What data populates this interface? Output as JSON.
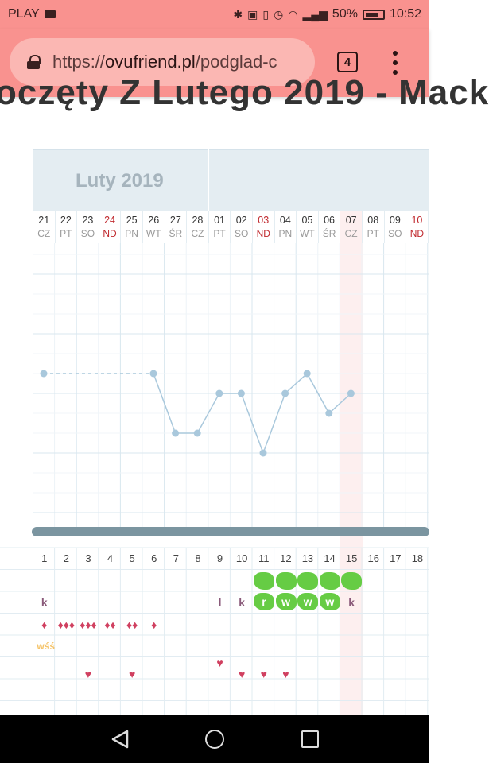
{
  "status_bar": {
    "carrier": "PLAY",
    "battery": "50%",
    "time": "10:52",
    "icons": [
      "mail-icon",
      "bluetooth-icon",
      "nfc-icon",
      "vibrate-icon",
      "alarm-icon",
      "wifi-icon",
      "signal-icon",
      "battery-icon"
    ]
  },
  "browser": {
    "url_scheme": "https://",
    "url_host": "ovufriend.pl",
    "url_path": "/podglad-c",
    "tab_count": "4"
  },
  "page": {
    "heading_partial": "oczęty Z Lutego 2019 - Mack"
  },
  "calendar": {
    "month_label": "Luty 2019",
    "days": [
      {
        "num": "21",
        "wd": "CZ",
        "sunday": false
      },
      {
        "num": "22",
        "wd": "PT",
        "sunday": false
      },
      {
        "num": "23",
        "wd": "SO",
        "sunday": false
      },
      {
        "num": "24",
        "wd": "ND",
        "sunday": true
      },
      {
        "num": "25",
        "wd": "PN",
        "sunday": false
      },
      {
        "num": "26",
        "wd": "WT",
        "sunday": false
      },
      {
        "num": "27",
        "wd": "ŚR",
        "sunday": false
      },
      {
        "num": "28",
        "wd": "CZ",
        "sunday": false
      },
      {
        "num": "01",
        "wd": "PT",
        "sunday": false
      },
      {
        "num": "02",
        "wd": "SO",
        "sunday": false
      },
      {
        "num": "03",
        "wd": "ND",
        "sunday": true
      },
      {
        "num": "04",
        "wd": "PN",
        "sunday": false
      },
      {
        "num": "05",
        "wd": "WT",
        "sunday": false
      },
      {
        "num": "06",
        "wd": "ŚR",
        "sunday": false
      },
      {
        "num": "07",
        "wd": "CZ",
        "sunday": false
      },
      {
        "num": "08",
        "wd": "PT",
        "sunday": false
      },
      {
        "num": "09",
        "wd": "SO",
        "sunday": false
      },
      {
        "num": "10",
        "wd": "ND",
        "sunday": true
      }
    ],
    "cycle_days": [
      "1",
      "2",
      "3",
      "4",
      "5",
      "6",
      "7",
      "8",
      "9",
      "10",
      "11",
      "12",
      "13",
      "14",
      "15",
      "16",
      "17",
      "18"
    ],
    "highlight_day": "15",
    "blob_row1_days": [
      "11",
      "12",
      "13",
      "14",
      "15"
    ],
    "row2_marks": [
      {
        "day": "1",
        "text": "k"
      },
      {
        "day": "9",
        "text": "l"
      },
      {
        "day": "10",
        "text": "k"
      },
      {
        "day": "15",
        "text": "k"
      }
    ],
    "row2_blobs": [
      {
        "day": "11",
        "text": "r"
      },
      {
        "day": "12",
        "text": "w"
      },
      {
        "day": "13",
        "text": "w"
      },
      {
        "day": "14",
        "text": "w"
      }
    ],
    "bleeding": [
      {
        "day": "1",
        "drops": 1
      },
      {
        "day": "2",
        "drops": 3
      },
      {
        "day": "3",
        "drops": 3
      },
      {
        "day": "4",
        "drops": 2
      },
      {
        "day": "5",
        "drops": 2
      },
      {
        "day": "6",
        "drops": 1
      }
    ],
    "wss_label": "wśś",
    "wss_day": "1",
    "heart_days": [
      "3",
      "5",
      "9",
      "10",
      "11",
      "12"
    ]
  },
  "chart_data": {
    "type": "line",
    "x": [
      "21",
      "22",
      "23",
      "24",
      "25",
      "26",
      "27",
      "28",
      "01",
      "02",
      "03",
      "04",
      "05",
      "06",
      "07"
    ],
    "values": [
      3,
      null,
      null,
      null,
      null,
      3,
      0,
      0,
      2,
      2,
      -1,
      2,
      3,
      1,
      2
    ],
    "dashed_segment": [
      "21",
      "26"
    ],
    "color": "#a9c8dc",
    "grid": true
  }
}
